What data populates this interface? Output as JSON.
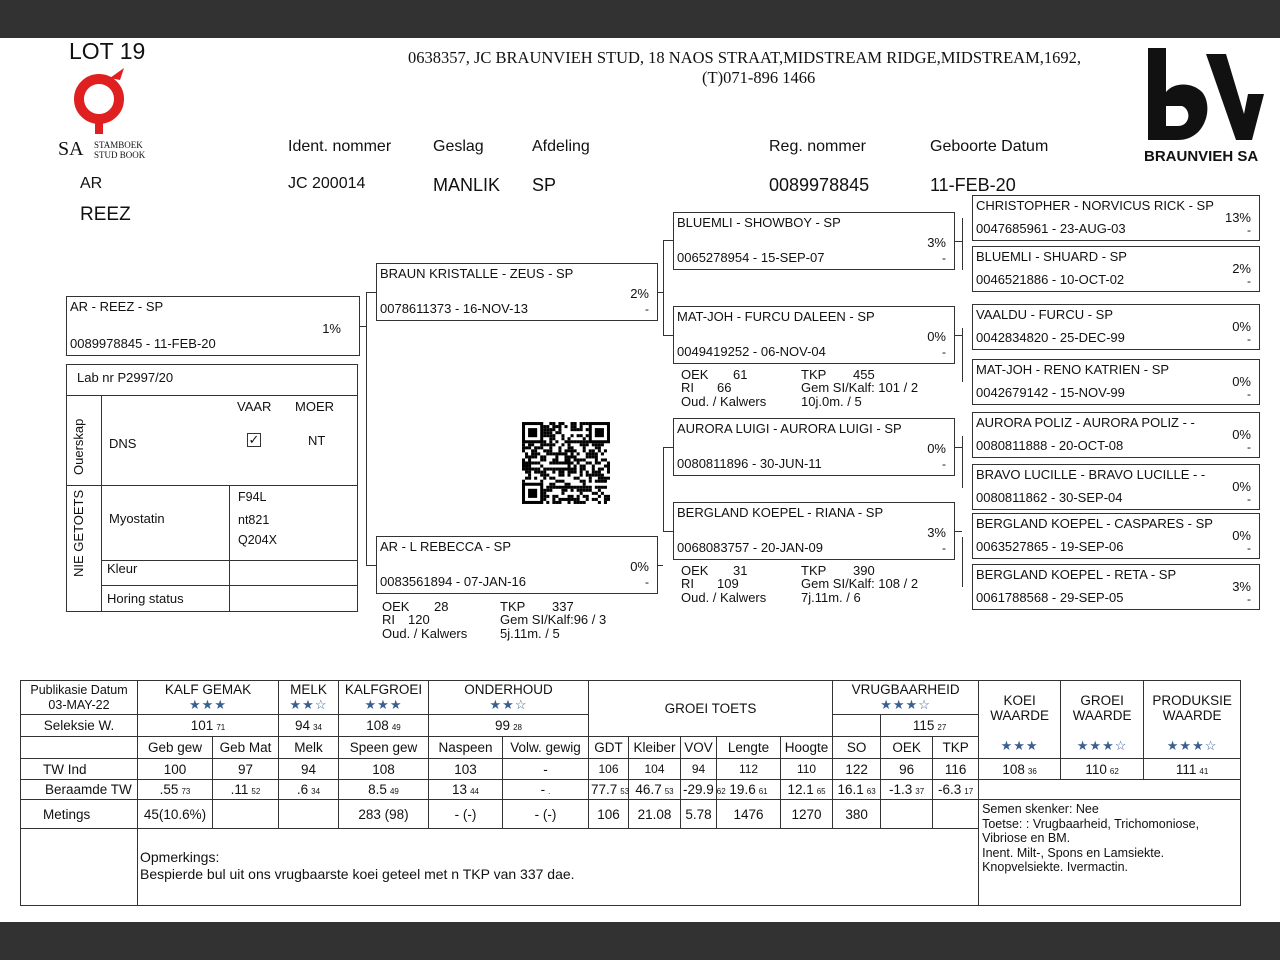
{
  "lot": "LOT 19",
  "stamboek_logo": {
    "sa": "SA",
    "line1": "STAMBOEK",
    "line2": "STUD BOOK",
    "color": "#e02020"
  },
  "brand_logo": {
    "letters": "BV",
    "text": "BRAUNVIEH SA"
  },
  "breeder": {
    "line1": "0638357,  JC BRAUNVIEH STUD, 18 NAOS STRAAT,MIDSTREAM RIDGE,MIDSTREAM,1692,",
    "line2": "(T)071-896 1466"
  },
  "animal": {
    "prefix": "AR",
    "name": "REEZ",
    "headers": {
      "ident": "Ident. nommer",
      "sex": "Geslag",
      "section": "Afdeling",
      "reg": "Reg. nommer",
      "dob": "Geboorte Datum"
    },
    "ident": "JC  200014",
    "sex": "MANLIK",
    "section": "SP",
    "reg": "0089978845",
    "dob": "11-FEB-20"
  },
  "pedigree": {
    "subject": {
      "name": "AR  - REEZ - SP",
      "id": "0089978845 -  11-FEB-20",
      "pct": "1%"
    },
    "sire": {
      "name": "BRAUN KRISTALLE  - ZEUS - SP",
      "id": "0078611373 - 16-NOV-13",
      "pct": "2%",
      "dash": "-"
    },
    "dam": {
      "name": "AR  - L REBECCA - SP",
      "id": "0083561894 - 07-JAN-16",
      "pct": "0%",
      "dash": "-",
      "stats": {
        "oek_l": "OEK",
        "oek": "28",
        "ri_l": "RI",
        "ri": "120",
        "oud_l": "Oud. / Kalwers",
        "tkp_l": "TKP",
        "tkp": "337",
        "gem": "Gem SI/Kalf:96 / 3",
        "age": "5j.11m. / 5"
      }
    },
    "gen3": [
      {
        "name": "BLUEMLI  - SHOWBOY - SP",
        "id": "0065278954 - 15-SEP-07",
        "pct": "3%",
        "dash": "-"
      },
      {
        "name": "MAT-JOH  - FURCU DALEEN - SP",
        "id": "0049419252 - 06-NOV-04",
        "pct": "0%",
        "dash": "-",
        "stats": {
          "oek_l": "OEK",
          "oek": "61",
          "ri_l": "RI",
          "ri": "66",
          "oud_l": "Oud. / Kalwers",
          "tkp_l": "TKP",
          "tkp": "455",
          "gem": "Gem SI/Kalf:  101 / 2",
          "age": "10j.0m. / 5"
        }
      },
      {
        "name": "AURORA LUIGI  - AURORA LUIGI - SP",
        "id": "0080811896 - 30-JUN-11",
        "pct": "0%",
        "dash": "-"
      },
      {
        "name": "BERGLAND KOEPEL  - RIANA - SP",
        "id": "0068083757 - 20-JAN-09",
        "pct": "3%",
        "dash": "-",
        "stats": {
          "oek_l": "OEK",
          "oek": "31",
          "ri_l": "RI",
          "ri": "109",
          "oud_l": "Oud. / Kalwers",
          "tkp_l": "TKP",
          "tkp": "390",
          "gem": "Gem SI/Kalf:   108 / 2",
          "age": "7j.11m. / 6"
        }
      }
    ],
    "gen4": [
      {
        "name": "CHRISTOPHER  - NORVICUS RICK - SP",
        "id": "0047685961 - 23-AUG-03",
        "pct": "13%",
        "dash": "-"
      },
      {
        "name": "BLUEMLI  - SHUARD - SP",
        "id": "0046521886 - 10-OCT-02",
        "pct": "2%",
        "dash": "-"
      },
      {
        "name": "VAALDU  - FURCU - SP",
        "id": "0042834820 - 25-DEC-99",
        "pct": "0%",
        "dash": "-"
      },
      {
        "name": "MAT-JOH  - RENO KATRIEN - SP",
        "id": "0042679142 - 15-NOV-99",
        "pct": "0%",
        "dash": "-"
      },
      {
        "name": "AURORA POLIZ  - AURORA POLIZ - -",
        "id": "0080811888 - 20-OCT-08",
        "pct": "0%",
        "dash": "-"
      },
      {
        "name": "BRAVO LUCILLE  - BRAVO LUCILLE - -",
        "id": "0080811862 - 30-SEP-04",
        "pct": "0%",
        "dash": "-"
      },
      {
        "name": "BERGLAND KOEPEL  - CASPARES - SP",
        "id": "0063527865 - 19-SEP-06",
        "pct": "0%",
        "dash": "-"
      },
      {
        "name": "BERGLAND KOEPEL  - RETA - SP",
        "id": "0061788568 - 29-SEP-05",
        "pct": "3%",
        "dash": "-"
      }
    ]
  },
  "lab": {
    "lab_nr": "Lab nr  P2997/20",
    "ouerskap": "Ouerskap",
    "nie_getoets": "NIE GETOETS",
    "vaar": "VAAR",
    "moer": "MOER",
    "dns": "DNS",
    "dns_vaar_checked": true,
    "dns_moer": "NT",
    "myostatin": "Myostatin",
    "myo_values": [
      "F94L",
      "nt821",
      "Q204X"
    ],
    "kleur": "Kleur",
    "horing": "Horing status"
  },
  "table": {
    "pub_label": "Publikasie Datum",
    "pub_date": "03-MAY-22",
    "groups": {
      "kalf_gemak": "KALF GEMAK",
      "melk": "MELK",
      "kalfgroei": "KALFGROEI",
      "onderhoud": "ONDERHOUD",
      "groei_toets": "GROEI TOETS",
      "vrugbaarheid": "VRUGBAARHEID",
      "koei1": "KOEI",
      "koei2": "WAARDE",
      "groei1": "GROEI",
      "groei2": "WAARDE",
      "prod1": "PRODUKSIE",
      "prod2": "WAARDE"
    },
    "stars": {
      "kalf_gemak": "★★★",
      "melk": "★★☆",
      "kalfgroei": "★★★",
      "onderhoud": "★★☆",
      "vrugbaarheid": "★★★☆",
      "koei": "★★★",
      "groei": "★★★☆",
      "prod": "★★★☆"
    },
    "seleksie_label": "Seleksie W.",
    "seleksie": {
      "kalf_gemak": [
        "101",
        "71"
      ],
      "melk": [
        "94",
        "34"
      ],
      "kalfgroei": [
        "108",
        "49"
      ],
      "onderhoud": [
        "99",
        "28"
      ],
      "vrugbaarheid": [
        "115",
        "27"
      ]
    },
    "columns": [
      "Geb gew",
      "Geb Mat",
      "Melk",
      "Speen gew",
      "Naspeen",
      "Volw. gewig",
      "GDT",
      "Kleiber",
      "VOV",
      "Lengte",
      "Hoogte",
      "SO",
      "OEK",
      "TKP"
    ],
    "tw_label": "TW Ind",
    "tw": [
      "100",
      "97",
      "94",
      "108",
      "103",
      "-",
      "106",
      "104",
      "94",
      "112",
      "110",
      "122",
      "96",
      "116"
    ],
    "tw_index": {
      "koei": [
        "108",
        "36"
      ],
      "groei": [
        "110",
        "62"
      ],
      "prod": [
        "111",
        "41"
      ]
    },
    "ber_label": "Beraamde TW",
    "ber": [
      [
        ".55",
        "73"
      ],
      [
        ".11",
        "52"
      ],
      [
        ".6",
        "34"
      ],
      [
        "8.5",
        "49"
      ],
      [
        "13",
        "44"
      ],
      [
        "-",
        "."
      ],
      [
        "77.7",
        "53"
      ],
      [
        "46.7",
        "53"
      ],
      [
        "-29.9",
        "62"
      ],
      [
        "19.6",
        "61"
      ],
      [
        "12.1",
        "65"
      ],
      [
        "16.1",
        "63"
      ],
      [
        "-1.3",
        "37"
      ],
      [
        "-6.3",
        "17"
      ]
    ],
    "met_label": "Metings",
    "met": [
      "45(10.6%)",
      "",
      "",
      "283  (98)",
      "-  (-)",
      "-   (-)",
      "106",
      "21.08",
      "5.78",
      "1476",
      "1270",
      "380",
      "",
      ""
    ],
    "notes": [
      "Semen skenker: Nee",
      "Toetse: : Vrugbaarheid, Trichomoniose,",
      "Vibriose en BM.",
      " Inent. Milt-, Spons en Lamsiekte.",
      " Knopvelsiekte. Ivermactin."
    ],
    "opm_label": "Opmerkings:",
    "opm": "Bespierde bul uit ons vrugbaarste koei geteel met n TKP van 337 dae."
  }
}
